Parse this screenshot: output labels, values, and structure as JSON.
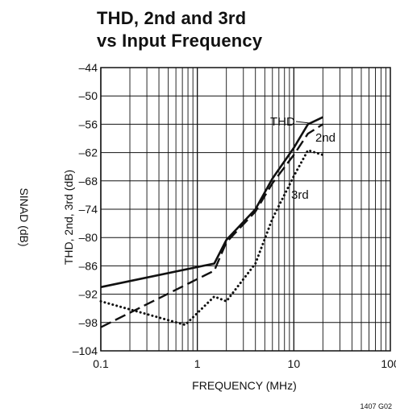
{
  "chart_data": {
    "type": "line",
    "title_line1": "THD, 2nd and 3rd",
    "title_line2": "vs Input Frequency",
    "xlabel": "FREQUENCY (MHz)",
    "ylabel": "THD, 2nd, 3rd (dB)",
    "ylabel_secondary": "SINAD (dB)",
    "x_scale": "log",
    "xlim": [
      0.1,
      100
    ],
    "ylim": [
      -104,
      -44
    ],
    "x_ticks": [
      {
        "value": 0.1,
        "label": "0.1"
      },
      {
        "value": 1,
        "label": "1"
      },
      {
        "value": 10,
        "label": "10"
      },
      {
        "value": 100,
        "label": "100"
      }
    ],
    "y_ticks": [
      {
        "value": -44,
        "label": "–44"
      },
      {
        "value": -50,
        "label": "–50"
      },
      {
        "value": -56,
        "label": "–56"
      },
      {
        "value": -62,
        "label": "–62"
      },
      {
        "value": -68,
        "label": "–68"
      },
      {
        "value": -74,
        "label": "–74"
      },
      {
        "value": -80,
        "label": "–80"
      },
      {
        "value": -86,
        "label": "–86"
      },
      {
        "value": -92,
        "label": "–92"
      },
      {
        "value": -98,
        "label": "–98"
      },
      {
        "value": -104,
        "label": "–104"
      }
    ],
    "grid": true,
    "series": [
      {
        "name": "THD",
        "style": "solid",
        "x": [
          0.1,
          1.5,
          2,
          4,
          6,
          10,
          14,
          20
        ],
        "y": [
          -90.5,
          -85.5,
          -80.5,
          -74,
          -67.5,
          -61,
          -56,
          -54.5
        ]
      },
      {
        "name": "2nd",
        "style": "dashed",
        "x": [
          0.1,
          1.5,
          2,
          4,
          6,
          10,
          14,
          20
        ],
        "y": [
          -99,
          -87,
          -81,
          -74.5,
          -68.5,
          -62.5,
          -58,
          -56
        ]
      },
      {
        "name": "3rd",
        "style": "dotted",
        "x": [
          0.1,
          0.75,
          1.5,
          2,
          4,
          6,
          10,
          14,
          20
        ],
        "y": [
          -93.5,
          -98.5,
          -92.5,
          -93.5,
          -85.5,
          -76,
          -67,
          -61.5,
          -62.5
        ]
      }
    ],
    "annotation_code": "1407 G02"
  }
}
